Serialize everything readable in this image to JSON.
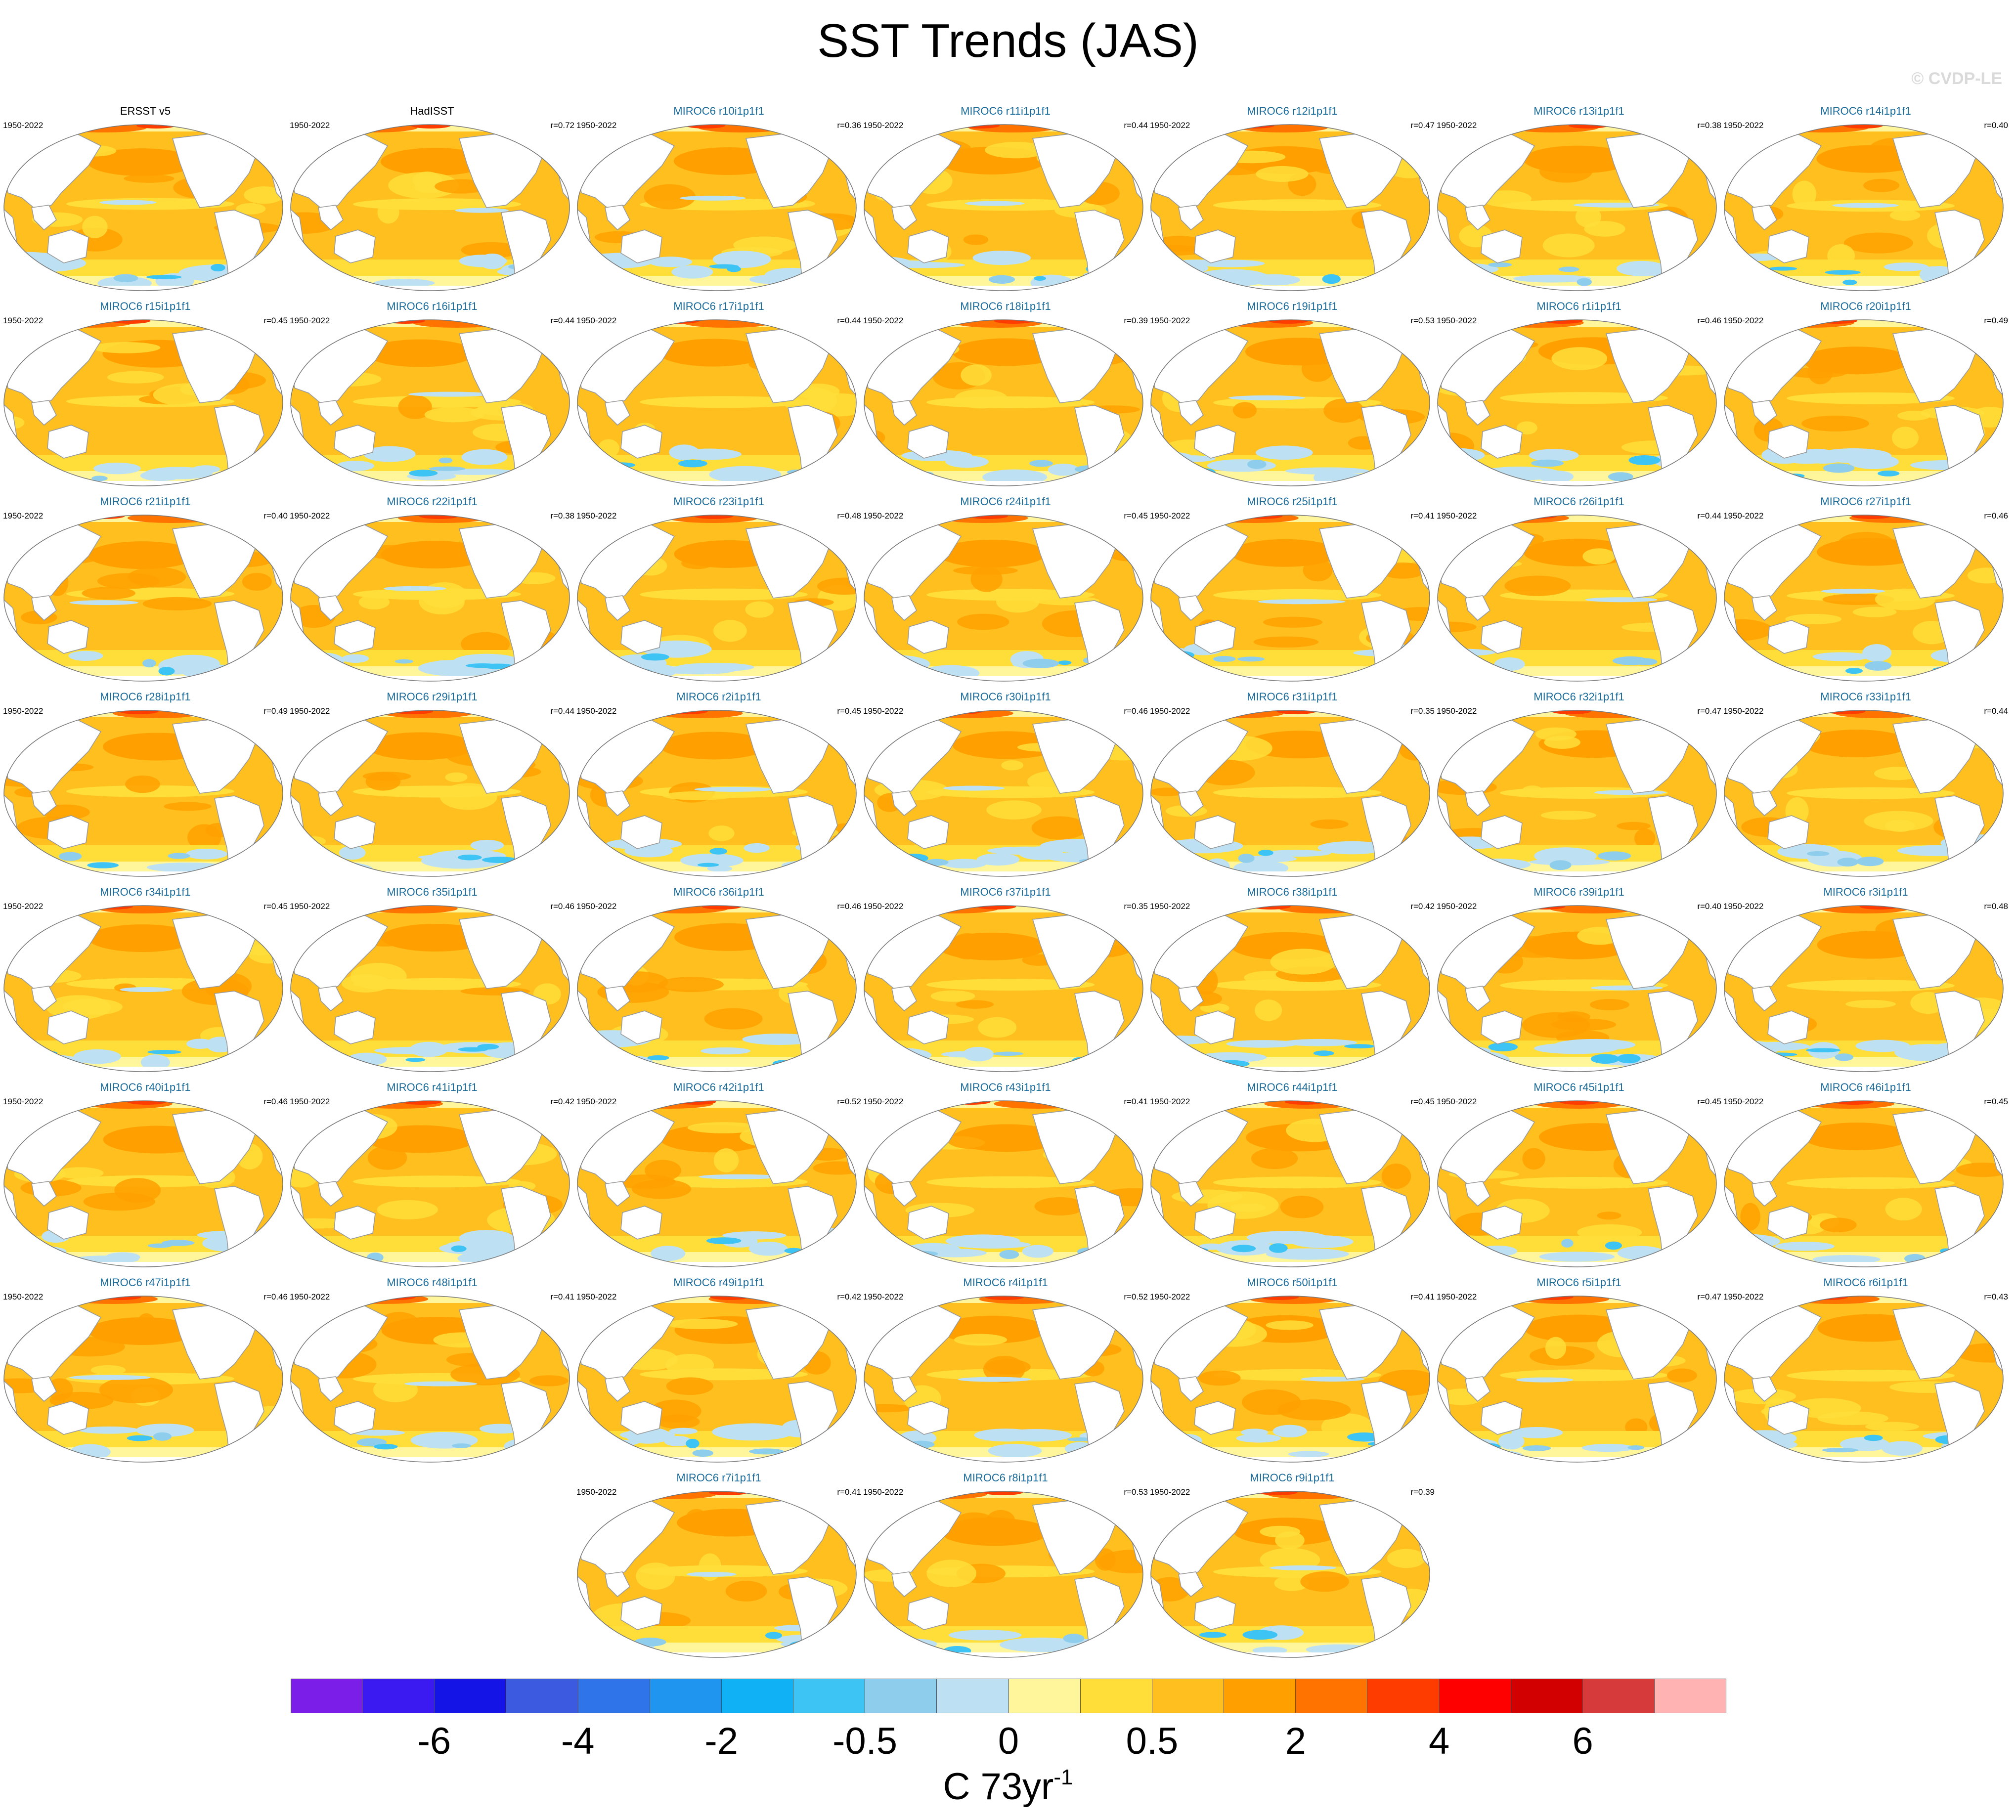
{
  "title": "SST Trends (JAS)",
  "watermark": "© CVDP-LE",
  "panels": [
    {
      "label": "ERSST v5",
      "period": "1950-2022",
      "r": "",
      "kind": "obs",
      "variant": 0
    },
    {
      "label": "HadISST",
      "period": "1950-2022",
      "r": "r=0.72",
      "kind": "obs",
      "variant": 1
    },
    {
      "label": "MIROC6 r10i1p1f1",
      "period": "1950-2022",
      "r": "r=0.36",
      "kind": "model",
      "variant": 2
    },
    {
      "label": "MIROC6 r11i1p1f1",
      "period": "1950-2022",
      "r": "r=0.44",
      "kind": "model",
      "variant": 3
    },
    {
      "label": "MIROC6 r12i1p1f1",
      "period": "1950-2022",
      "r": "r=0.47",
      "kind": "model",
      "variant": 4
    },
    {
      "label": "MIROC6 r13i1p1f1",
      "period": "1950-2022",
      "r": "r=0.38",
      "kind": "model",
      "variant": 5
    },
    {
      "label": "MIROC6 r14i1p1f1",
      "period": "1950-2022",
      "r": "r=0.40",
      "kind": "model",
      "variant": 6
    },
    {
      "label": "MIROC6 r15i1p1f1",
      "period": "1950-2022",
      "r": "r=0.45",
      "kind": "model",
      "variant": 7
    },
    {
      "label": "MIROC6 r16i1p1f1",
      "period": "1950-2022",
      "r": "r=0.44",
      "kind": "model",
      "variant": 8
    },
    {
      "label": "MIROC6 r17i1p1f1",
      "period": "1950-2022",
      "r": "r=0.44",
      "kind": "model",
      "variant": 9
    },
    {
      "label": "MIROC6 r18i1p1f1",
      "period": "1950-2022",
      "r": "r=0.39",
      "kind": "model",
      "variant": 10
    },
    {
      "label": "MIROC6 r19i1p1f1",
      "period": "1950-2022",
      "r": "r=0.53",
      "kind": "model",
      "variant": 11
    },
    {
      "label": "MIROC6 r1i1p1f1",
      "period": "1950-2022",
      "r": "r=0.46",
      "kind": "model",
      "variant": 12
    },
    {
      "label": "MIROC6 r20i1p1f1",
      "period": "1950-2022",
      "r": "r=0.49",
      "kind": "model",
      "variant": 13
    },
    {
      "label": "MIROC6 r21i1p1f1",
      "period": "1950-2022",
      "r": "r=0.40",
      "kind": "model",
      "variant": 14
    },
    {
      "label": "MIROC6 r22i1p1f1",
      "period": "1950-2022",
      "r": "r=0.38",
      "kind": "model",
      "variant": 15
    },
    {
      "label": "MIROC6 r23i1p1f1",
      "period": "1950-2022",
      "r": "r=0.48",
      "kind": "model",
      "variant": 16
    },
    {
      "label": "MIROC6 r24i1p1f1",
      "period": "1950-2022",
      "r": "r=0.45",
      "kind": "model",
      "variant": 17
    },
    {
      "label": "MIROC6 r25i1p1f1",
      "period": "1950-2022",
      "r": "r=0.41",
      "kind": "model",
      "variant": 18
    },
    {
      "label": "MIROC6 r26i1p1f1",
      "period": "1950-2022",
      "r": "r=0.44",
      "kind": "model",
      "variant": 19
    },
    {
      "label": "MIROC6 r27i1p1f1",
      "period": "1950-2022",
      "r": "r=0.46",
      "kind": "model",
      "variant": 20
    },
    {
      "label": "MIROC6 r28i1p1f1",
      "period": "1950-2022",
      "r": "r=0.49",
      "kind": "model",
      "variant": 21
    },
    {
      "label": "MIROC6 r29i1p1f1",
      "period": "1950-2022",
      "r": "r=0.44",
      "kind": "model",
      "variant": 22
    },
    {
      "label": "MIROC6 r2i1p1f1",
      "period": "1950-2022",
      "r": "r=0.45",
      "kind": "model",
      "variant": 23
    },
    {
      "label": "MIROC6 r30i1p1f1",
      "period": "1950-2022",
      "r": "r=0.46",
      "kind": "model",
      "variant": 24
    },
    {
      "label": "MIROC6 r31i1p1f1",
      "period": "1950-2022",
      "r": "r=0.35",
      "kind": "model",
      "variant": 25
    },
    {
      "label": "MIROC6 r32i1p1f1",
      "period": "1950-2022",
      "r": "r=0.47",
      "kind": "model",
      "variant": 26
    },
    {
      "label": "MIROC6 r33i1p1f1",
      "period": "1950-2022",
      "r": "r=0.44",
      "kind": "model",
      "variant": 27
    },
    {
      "label": "MIROC6 r34i1p1f1",
      "period": "1950-2022",
      "r": "r=0.45",
      "kind": "model",
      "variant": 28
    },
    {
      "label": "MIROC6 r35i1p1f1",
      "period": "1950-2022",
      "r": "r=0.46",
      "kind": "model",
      "variant": 29
    },
    {
      "label": "MIROC6 r36i1p1f1",
      "period": "1950-2022",
      "r": "r=0.46",
      "kind": "model",
      "variant": 30
    },
    {
      "label": "MIROC6 r37i1p1f1",
      "period": "1950-2022",
      "r": "r=0.35",
      "kind": "model",
      "variant": 31
    },
    {
      "label": "MIROC6 r38i1p1f1",
      "period": "1950-2022",
      "r": "r=0.42",
      "kind": "model",
      "variant": 32
    },
    {
      "label": "MIROC6 r39i1p1f1",
      "period": "1950-2022",
      "r": "r=0.40",
      "kind": "model",
      "variant": 33
    },
    {
      "label": "MIROC6 r3i1p1f1",
      "period": "1950-2022",
      "r": "r=0.48",
      "kind": "model",
      "variant": 34
    },
    {
      "label": "MIROC6 r40i1p1f1",
      "period": "1950-2022",
      "r": "r=0.46",
      "kind": "model",
      "variant": 35
    },
    {
      "label": "MIROC6 r41i1p1f1",
      "period": "1950-2022",
      "r": "r=0.42",
      "kind": "model",
      "variant": 36
    },
    {
      "label": "MIROC6 r42i1p1f1",
      "period": "1950-2022",
      "r": "r=0.52",
      "kind": "model",
      "variant": 37
    },
    {
      "label": "MIROC6 r43i1p1f1",
      "period": "1950-2022",
      "r": "r=0.41",
      "kind": "model",
      "variant": 38
    },
    {
      "label": "MIROC6 r44i1p1f1",
      "period": "1950-2022",
      "r": "r=0.45",
      "kind": "model",
      "variant": 39
    },
    {
      "label": "MIROC6 r45i1p1f1",
      "period": "1950-2022",
      "r": "r=0.45",
      "kind": "model",
      "variant": 40
    },
    {
      "label": "MIROC6 r46i1p1f1",
      "period": "1950-2022",
      "r": "r=0.45",
      "kind": "model",
      "variant": 41
    },
    {
      "label": "MIROC6 r47i1p1f1",
      "period": "1950-2022",
      "r": "r=0.46",
      "kind": "model",
      "variant": 42
    },
    {
      "label": "MIROC6 r48i1p1f1",
      "period": "1950-2022",
      "r": "r=0.41",
      "kind": "model",
      "variant": 43
    },
    {
      "label": "MIROC6 r49i1p1f1",
      "period": "1950-2022",
      "r": "r=0.42",
      "kind": "model",
      "variant": 44
    },
    {
      "label": "MIROC6 r4i1p1f1",
      "period": "1950-2022",
      "r": "r=0.52",
      "kind": "model",
      "variant": 45
    },
    {
      "label": "MIROC6 r50i1p1f1",
      "period": "1950-2022",
      "r": "r=0.41",
      "kind": "model",
      "variant": 46
    },
    {
      "label": "MIROC6 r5i1p1f1",
      "period": "1950-2022",
      "r": "r=0.47",
      "kind": "model",
      "variant": 47
    },
    {
      "label": "MIROC6 r6i1p1f1",
      "period": "1950-2022",
      "r": "r=0.43",
      "kind": "model",
      "variant": 48
    },
    {
      "label": "MIROC6 r7i1p1f1",
      "period": "1950-2022",
      "r": "r=0.41",
      "kind": "model",
      "variant": 49
    },
    {
      "label": "MIROC6 r8i1p1f1",
      "period": "1950-2022",
      "r": "r=0.53",
      "kind": "model",
      "variant": 50
    },
    {
      "label": "MIROC6 r9i1p1f1",
      "period": "1950-2022",
      "r": "r=0.39",
      "kind": "model",
      "variant": 51
    }
  ],
  "colorbar": {
    "colors": [
      "#7b1fe8",
      "#3a1af0",
      "#1414e6",
      "#3b5ae0",
      "#2f74e8",
      "#1f95f0",
      "#10b2f5",
      "#3ec3f5",
      "#8fcdec",
      "#bde1f3",
      "#fff59a",
      "#ffde3a",
      "#ffbf1e",
      "#ffa000",
      "#ff7300",
      "#ff3c00",
      "#ff0000",
      "#d20000",
      "#d73a3a",
      "#ffb3b3"
    ],
    "ticks": [
      "-6",
      "-4",
      "-2",
      "-0.5",
      "0",
      "0.5",
      "2",
      "4",
      "6"
    ],
    "tick_boundaries": [
      2,
      4,
      6,
      8,
      10,
      12,
      14,
      16,
      18
    ],
    "units_main": "C 73yr",
    "units_exp": "-1"
  },
  "map_colors": {
    "land": "#ffffff",
    "coast": "#9a9a9a",
    "warm_base": "#ffbf1e",
    "warm_strong": "#ffa000",
    "warm_light": "#ffde3a",
    "near_zero": "#fff59a",
    "cool": "#bde1f3",
    "cool_mid": "#8fcdec",
    "cool_strong": "#3ec3f5",
    "hot": "#ff7300",
    "very_hot": "#ff3c00"
  }
}
